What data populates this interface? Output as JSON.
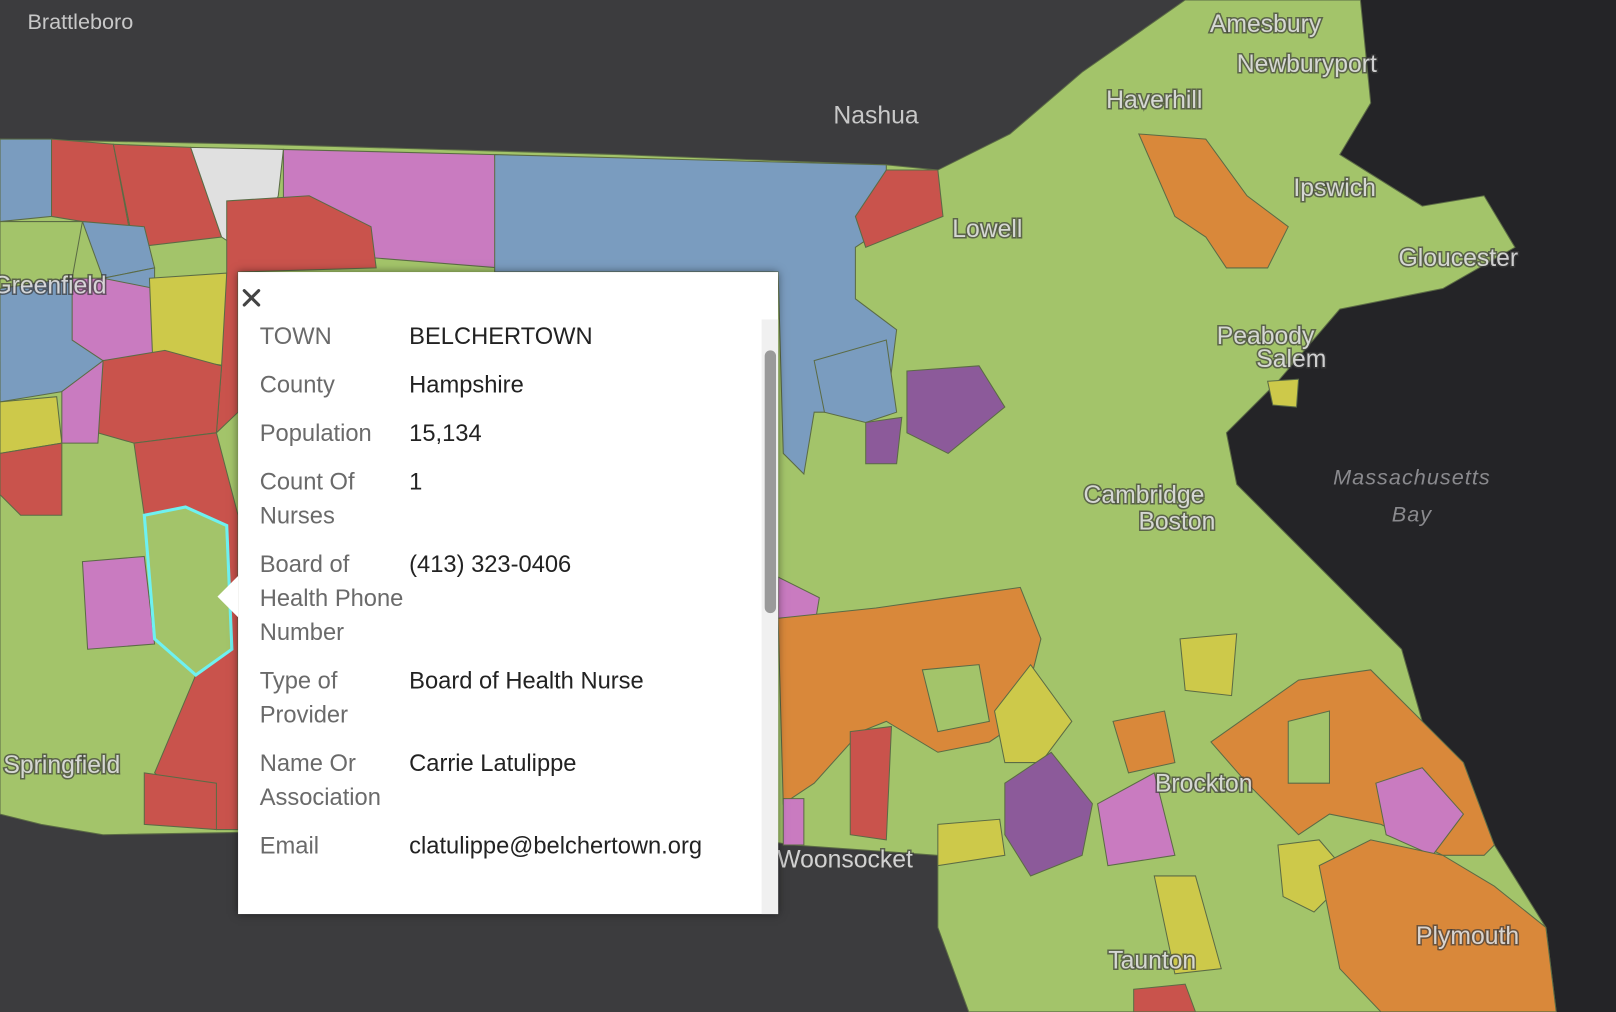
{
  "map_labels": [
    "Brattleboro",
    "Amesbury",
    "Newburyport",
    "Nashua",
    "Haverhill",
    "Ipswich",
    "Lowell",
    "Gloucester",
    "Greenfield",
    "Peabody",
    "Salem",
    "Massachusetts",
    "Bay",
    "Cambridge",
    "Boston",
    "Brockton",
    "Springfield",
    "Woonsocket",
    "Plymouth",
    "Taunton"
  ],
  "popup": {
    "fields": [
      {
        "label": "TOWN",
        "value": "BELCHERTOWN"
      },
      {
        "label": "County",
        "value": "Hampshire"
      },
      {
        "label": "Population",
        "value": "15,134"
      },
      {
        "label": "Count Of Nurses",
        "value": "1"
      },
      {
        "label": "Board of Health Phone Number",
        "value": "(413) 323-0406"
      },
      {
        "label": "Type of Provider",
        "value": "Board of Health Nurse"
      },
      {
        "label": "Name Or Association",
        "value": "Carrie Latulippe"
      },
      {
        "label": "Email",
        "value": "clatulippe@belchertown.org"
      }
    ]
  }
}
